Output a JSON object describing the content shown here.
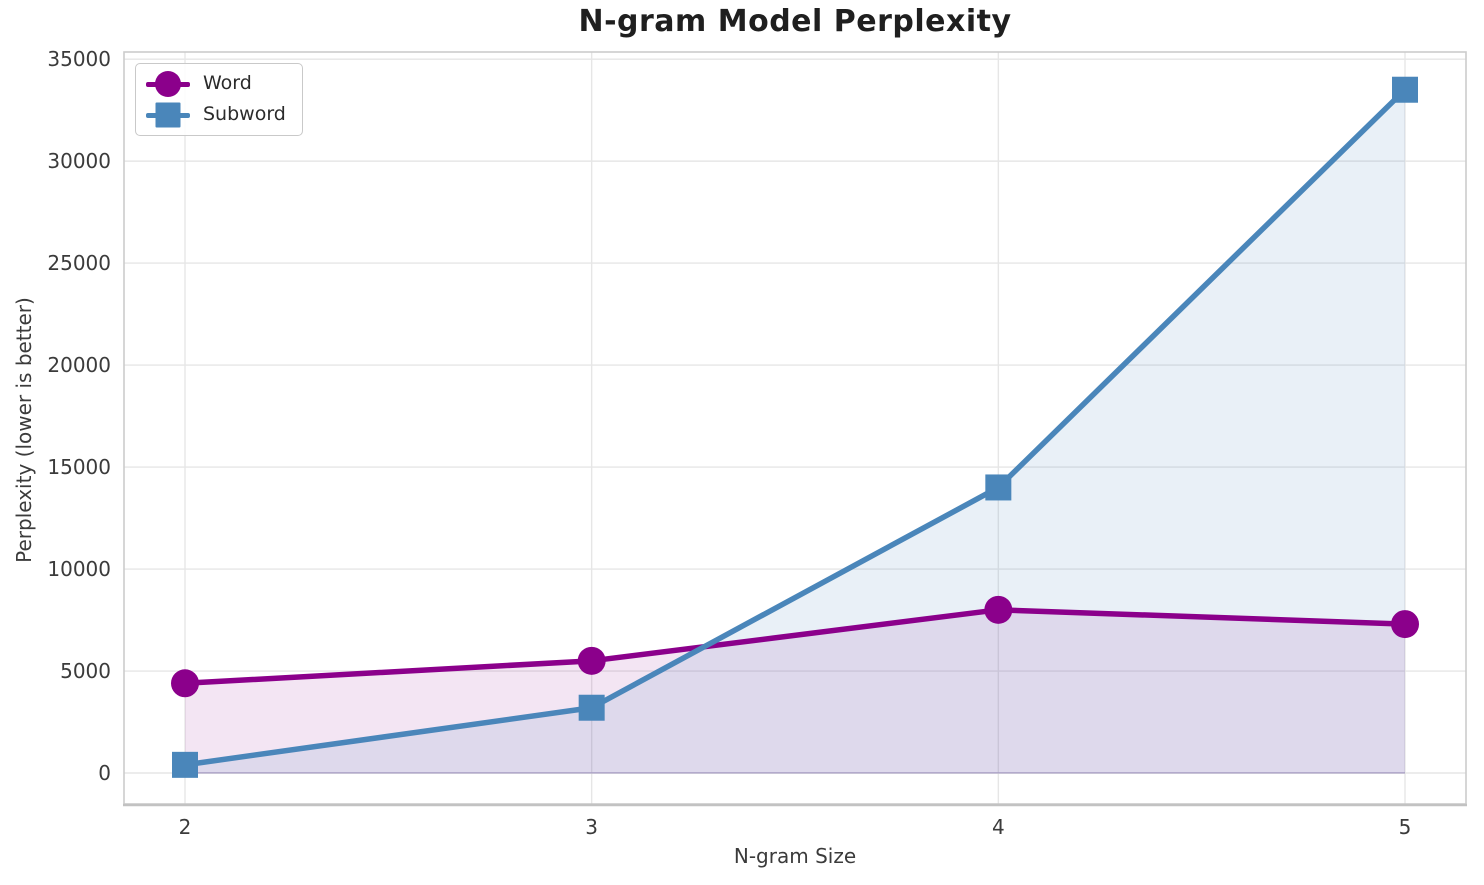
{
  "chart_data": {
    "type": "line",
    "title": "N-gram Model Perplexity",
    "xlabel": "N-gram Size",
    "ylabel": "Perplexity (lower is better)",
    "x": [
      2,
      3,
      4,
      5
    ],
    "xtick_labels": [
      "2",
      "3",
      "4",
      "5"
    ],
    "yticks": [
      0,
      5000,
      10000,
      15000,
      20000,
      25000,
      30000,
      35000
    ],
    "ytick_labels": [
      "0",
      "5000",
      "10000",
      "15000",
      "20000",
      "25000",
      "30000",
      "35000"
    ],
    "xlim": [
      1.85,
      5.15
    ],
    "ylim": [
      -1520,
      35350
    ],
    "grid": true,
    "legend_position": "upper left",
    "fill_to_zero": true,
    "series": [
      {
        "name": "Word",
        "marker": "circle",
        "color": "#8B008B",
        "fill_opacity": 0.1,
        "values": [
          4400,
          5500,
          8000,
          7300
        ]
      },
      {
        "name": "Subword",
        "marker": "square",
        "color": "#4A86BA",
        "fill_opacity": 0.12,
        "values": [
          400,
          3200,
          14000,
          33500
        ]
      }
    ]
  },
  "style_colors": {
    "grid": "#e6e6e6",
    "spine": "#cccccc",
    "bottom_spine": "#c2c2c2",
    "tick_text": "#3b3b3b",
    "baseline_edge": "rgba(108,88,158,0.28)"
  }
}
